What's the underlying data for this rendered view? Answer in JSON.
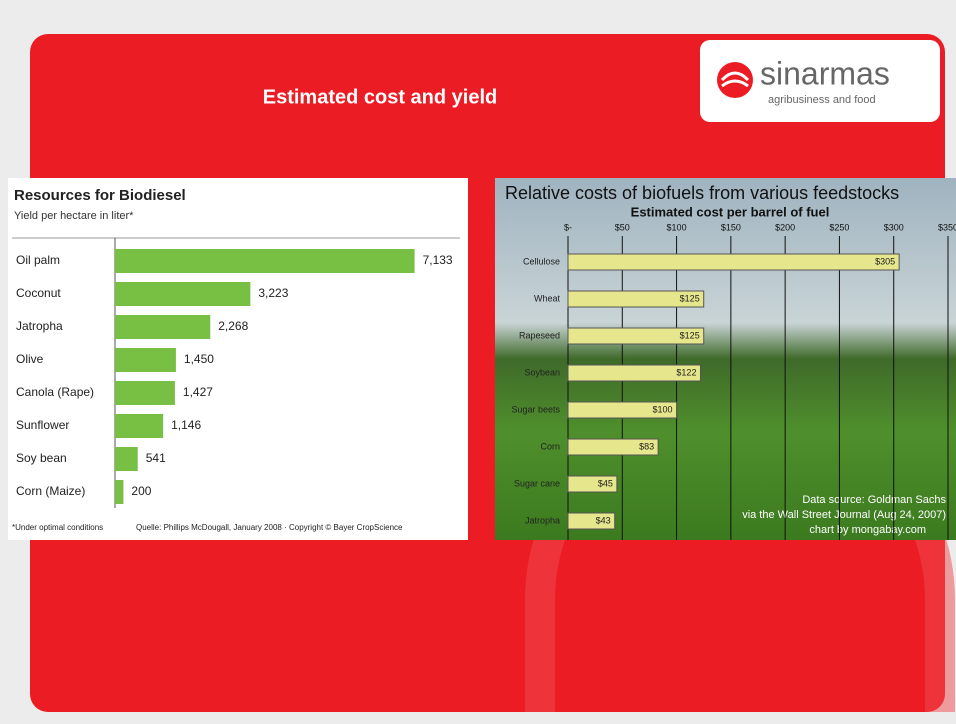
{
  "slide_title": "Estimated cost and yield",
  "logo": {
    "name": "sinarmas",
    "tagline": "agribusiness and food"
  },
  "chart_data": [
    {
      "type": "bar",
      "orientation": "horizontal",
      "title": "Resources for Biodiesel",
      "subtitle": "Yield per hectare in liter*",
      "categories": [
        "Oil palm",
        "Coconut",
        "Jatropha",
        "Olive",
        "Canola (Rape)",
        "Sunflower",
        "Soy bean",
        "Corn (Maize)"
      ],
      "values": [
        7133,
        3223,
        2268,
        1450,
        1427,
        1146,
        541,
        200
      ],
      "value_labels": [
        "7,133",
        "3,223",
        "2,268",
        "1,450",
        "1,427",
        "1,146",
        "541",
        "200"
      ],
      "color": "#77c043",
      "xlim": [
        0,
        8000
      ],
      "notes": [
        "*Under optimal conditions",
        "Quelle: Phillips McDougall, January 2008 · Copyright © Bayer CropScience"
      ]
    },
    {
      "type": "bar",
      "orientation": "horizontal",
      "title": "Relative costs of biofuels from various feedstocks",
      "subtitle": "Estimated cost per barrel of fuel",
      "categories": [
        "Cellulose",
        "Wheat",
        "Rapeseed",
        "Soybean",
        "Sugar beets",
        "Corn",
        "Sugar cane",
        "Jatropha"
      ],
      "values": [
        305,
        125,
        125,
        122,
        100,
        83,
        45,
        43
      ],
      "value_labels": [
        "$305",
        "$125",
        "$125",
        "$122",
        "$100",
        "$83",
        "$45",
        "$43"
      ],
      "color": "#e6e68c",
      "xlim": [
        0,
        350
      ],
      "xticks": [
        {
          "value": 0,
          "label": "$-"
        },
        {
          "value": 50,
          "label": "$50"
        },
        {
          "value": 100,
          "label": "$100"
        },
        {
          "value": 150,
          "label": "$150"
        },
        {
          "value": 200,
          "label": "$200"
        },
        {
          "value": 250,
          "label": "$250"
        },
        {
          "value": 300,
          "label": "$300"
        },
        {
          "value": 350,
          "label": "$350"
        }
      ],
      "grid": true,
      "annotations": [
        "Data source: Goldman Sachs",
        "via the Wall Street Journal (Aug 24, 2007)",
        "chart by mongabay.com"
      ]
    }
  ]
}
